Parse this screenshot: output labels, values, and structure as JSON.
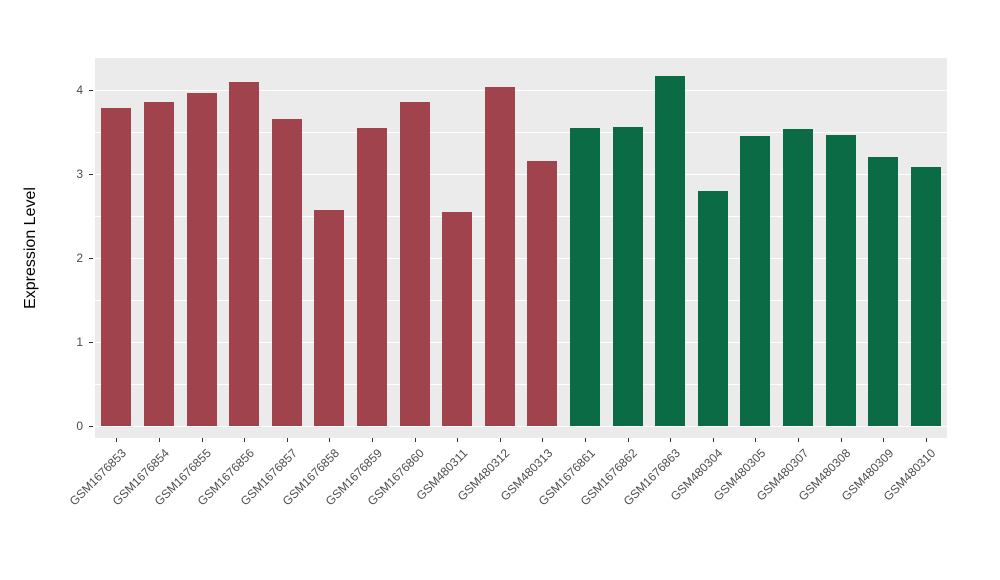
{
  "figure": {
    "background": "#FFFFFF",
    "panel_background": "#EBEBEB",
    "gridline_color": "#FFFFFF",
    "tick_color": "#333333",
    "axis_text_color": "#4D4D4D"
  },
  "chart_data": {
    "type": "bar",
    "title": "",
    "xlabel": "",
    "ylabel": "Expression Level",
    "ylim": [
      0,
      4.38
    ],
    "yticks": [
      0,
      1,
      2,
      3,
      4
    ],
    "yticks_minor": [
      0.5,
      1.5,
      2.5,
      3.5
    ],
    "grid": true,
    "legend": "none",
    "categories": [
      "GSM1676853",
      "GSM1676854",
      "GSM1676855",
      "GSM1676856",
      "GSM1676857",
      "GSM1676858",
      "GSM1676859",
      "GSM1676860",
      "GSM480311",
      "GSM480312",
      "GSM480313",
      "GSM1676861",
      "GSM1676862",
      "GSM1676863",
      "GSM480304",
      "GSM480305",
      "GSM480307",
      "GSM480308",
      "GSM480309",
      "GSM480310"
    ],
    "values": [
      3.78,
      3.86,
      3.97,
      4.09,
      3.65,
      2.57,
      3.55,
      3.86,
      2.55,
      4.04,
      3.15,
      3.55,
      3.56,
      4.17,
      2.8,
      3.45,
      3.53,
      3.46,
      3.2,
      3.08
    ],
    "colors": [
      "#A0434D",
      "#A0434D",
      "#A0434D",
      "#A0434D",
      "#A0434D",
      "#A0434D",
      "#A0434D",
      "#A0434D",
      "#A0434D",
      "#A0434D",
      "#A0434D",
      "#0B6B45",
      "#0B6B45",
      "#0B6B45",
      "#0B6B45",
      "#0B6B45",
      "#0B6B45",
      "#0B6B45",
      "#0B6B45",
      "#0B6B45"
    ],
    "group_colors": {
      "group1": "#A0434D",
      "group2": "#0B6B45"
    }
  }
}
